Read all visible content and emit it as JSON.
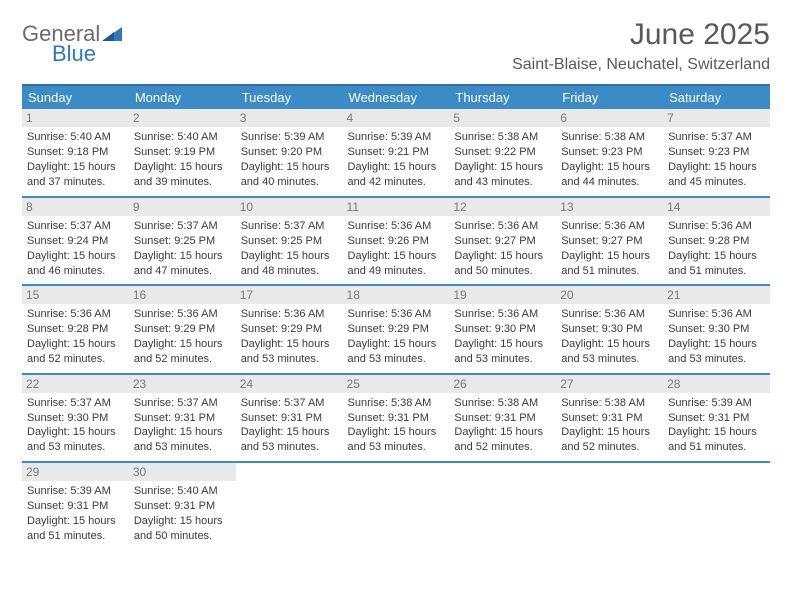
{
  "logo": {
    "line1": "General",
    "line2": "Blue"
  },
  "title": "June 2025",
  "location": "Saint-Blaise, Neuchatel, Switzerland",
  "colors": {
    "header_bg": "#3b8bc7",
    "header_border": "#2f6fa3",
    "row_border": "#3b8bc7",
    "daynum_bg": "#e9e9e9",
    "text": "#3a3a3a",
    "title_text": "#595959",
    "logo_gray": "#6b6b6b",
    "logo_blue": "#2f78bd"
  },
  "weekdays": [
    "Sunday",
    "Monday",
    "Tuesday",
    "Wednesday",
    "Thursday",
    "Friday",
    "Saturday"
  ],
  "days": [
    {
      "n": 1,
      "sunrise": "5:40 AM",
      "sunset": "9:18 PM",
      "daylight": "15 hours and 37 minutes."
    },
    {
      "n": 2,
      "sunrise": "5:40 AM",
      "sunset": "9:19 PM",
      "daylight": "15 hours and 39 minutes."
    },
    {
      "n": 3,
      "sunrise": "5:39 AM",
      "sunset": "9:20 PM",
      "daylight": "15 hours and 40 minutes."
    },
    {
      "n": 4,
      "sunrise": "5:39 AM",
      "sunset": "9:21 PM",
      "daylight": "15 hours and 42 minutes."
    },
    {
      "n": 5,
      "sunrise": "5:38 AM",
      "sunset": "9:22 PM",
      "daylight": "15 hours and 43 minutes."
    },
    {
      "n": 6,
      "sunrise": "5:38 AM",
      "sunset": "9:23 PM",
      "daylight": "15 hours and 44 minutes."
    },
    {
      "n": 7,
      "sunrise": "5:37 AM",
      "sunset": "9:23 PM",
      "daylight": "15 hours and 45 minutes."
    },
    {
      "n": 8,
      "sunrise": "5:37 AM",
      "sunset": "9:24 PM",
      "daylight": "15 hours and 46 minutes."
    },
    {
      "n": 9,
      "sunrise": "5:37 AM",
      "sunset": "9:25 PM",
      "daylight": "15 hours and 47 minutes."
    },
    {
      "n": 10,
      "sunrise": "5:37 AM",
      "sunset": "9:25 PM",
      "daylight": "15 hours and 48 minutes."
    },
    {
      "n": 11,
      "sunrise": "5:36 AM",
      "sunset": "9:26 PM",
      "daylight": "15 hours and 49 minutes."
    },
    {
      "n": 12,
      "sunrise": "5:36 AM",
      "sunset": "9:27 PM",
      "daylight": "15 hours and 50 minutes."
    },
    {
      "n": 13,
      "sunrise": "5:36 AM",
      "sunset": "9:27 PM",
      "daylight": "15 hours and 51 minutes."
    },
    {
      "n": 14,
      "sunrise": "5:36 AM",
      "sunset": "9:28 PM",
      "daylight": "15 hours and 51 minutes."
    },
    {
      "n": 15,
      "sunrise": "5:36 AM",
      "sunset": "9:28 PM",
      "daylight": "15 hours and 52 minutes."
    },
    {
      "n": 16,
      "sunrise": "5:36 AM",
      "sunset": "9:29 PM",
      "daylight": "15 hours and 52 minutes."
    },
    {
      "n": 17,
      "sunrise": "5:36 AM",
      "sunset": "9:29 PM",
      "daylight": "15 hours and 53 minutes."
    },
    {
      "n": 18,
      "sunrise": "5:36 AM",
      "sunset": "9:29 PM",
      "daylight": "15 hours and 53 minutes."
    },
    {
      "n": 19,
      "sunrise": "5:36 AM",
      "sunset": "9:30 PM",
      "daylight": "15 hours and 53 minutes."
    },
    {
      "n": 20,
      "sunrise": "5:36 AM",
      "sunset": "9:30 PM",
      "daylight": "15 hours and 53 minutes."
    },
    {
      "n": 21,
      "sunrise": "5:36 AM",
      "sunset": "9:30 PM",
      "daylight": "15 hours and 53 minutes."
    },
    {
      "n": 22,
      "sunrise": "5:37 AM",
      "sunset": "9:30 PM",
      "daylight": "15 hours and 53 minutes."
    },
    {
      "n": 23,
      "sunrise": "5:37 AM",
      "sunset": "9:31 PM",
      "daylight": "15 hours and 53 minutes."
    },
    {
      "n": 24,
      "sunrise": "5:37 AM",
      "sunset": "9:31 PM",
      "daylight": "15 hours and 53 minutes."
    },
    {
      "n": 25,
      "sunrise": "5:38 AM",
      "sunset": "9:31 PM",
      "daylight": "15 hours and 53 minutes."
    },
    {
      "n": 26,
      "sunrise": "5:38 AM",
      "sunset": "9:31 PM",
      "daylight": "15 hours and 52 minutes."
    },
    {
      "n": 27,
      "sunrise": "5:38 AM",
      "sunset": "9:31 PM",
      "daylight": "15 hours and 52 minutes."
    },
    {
      "n": 28,
      "sunrise": "5:39 AM",
      "sunset": "9:31 PM",
      "daylight": "15 hours and 51 minutes."
    },
    {
      "n": 29,
      "sunrise": "5:39 AM",
      "sunset": "9:31 PM",
      "daylight": "15 hours and 51 minutes."
    },
    {
      "n": 30,
      "sunrise": "5:40 AM",
      "sunset": "9:31 PM",
      "daylight": "15 hours and 50 minutes."
    }
  ],
  "labels": {
    "sunrise": "Sunrise:",
    "sunset": "Sunset:",
    "daylight": "Daylight:"
  }
}
